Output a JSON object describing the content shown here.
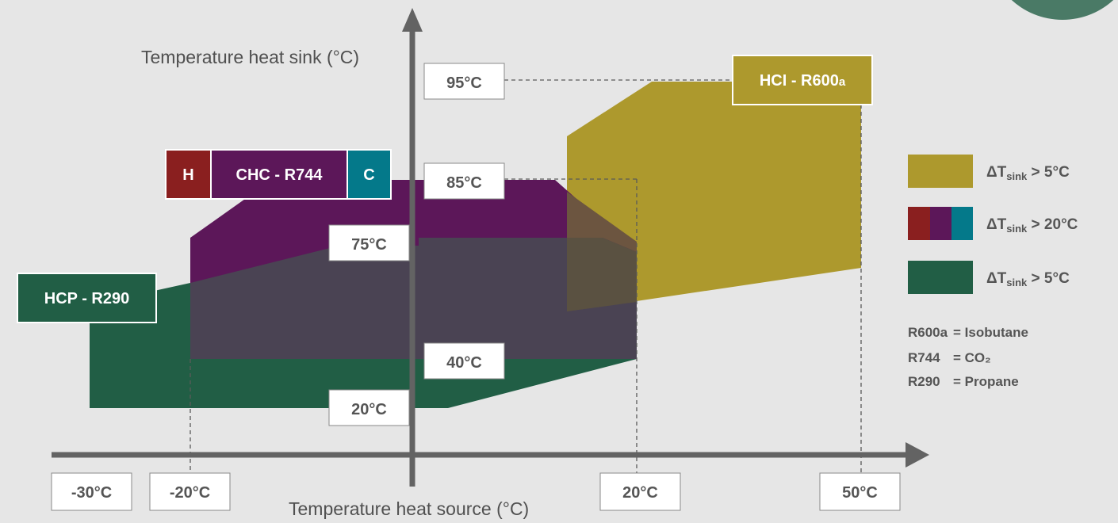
{
  "axes": {
    "y_title": "Temperature heat sink (°C)",
    "x_title": "Temperature heat source (°C)"
  },
  "x_ticks": [
    "-30°C",
    "-20°C",
    "20°C",
    "50°C"
  ],
  "y_labels": [
    "95°C",
    "85°C",
    "75°C",
    "40°C",
    "20°C"
  ],
  "systems": {
    "hci": {
      "name": "HCI - R600",
      "sub": "a",
      "color": "#ad992d"
    },
    "chc": {
      "name": "CHC - R744",
      "h": "H",
      "c": "C",
      "color": "#5c1759",
      "h_color": "#8a1f1f",
      "c_color": "#04798a"
    },
    "hcp": {
      "name": "HCP - R290",
      "color": "#215e45"
    },
    "overlap_color": "#4a4353"
  },
  "legend": [
    {
      "pre": "ΔT",
      "sub": "sink",
      "post": " > 5°C"
    },
    {
      "pre": "ΔT",
      "sub": "sink",
      "post": " > 20°C"
    },
    {
      "pre": "ΔT",
      "sub": "sink",
      "post": " > 5°C"
    }
  ],
  "notes": [
    {
      "key": "R600a",
      "value": "= Isobutane"
    },
    {
      "key": "R744",
      "value": "= CO₂"
    },
    {
      "key": "R290",
      "value": "= Propane"
    }
  ]
}
